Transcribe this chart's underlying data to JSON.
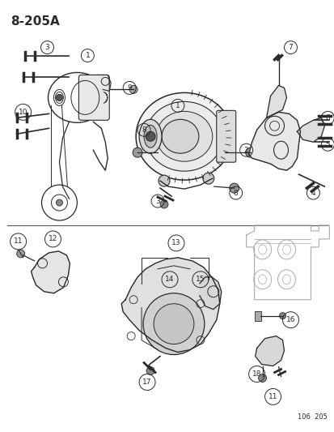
{
  "bg_color": "#ffffff",
  "line_color": "#2a2a2a",
  "title": "8-205A",
  "footer": "106  205",
  "fig_w": 4.14,
  "fig_h": 5.33,
  "dpi": 100
}
